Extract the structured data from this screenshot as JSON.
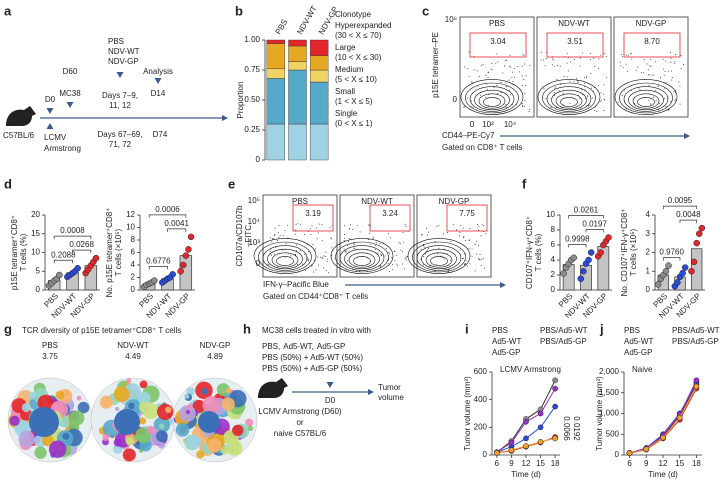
{
  "a": {
    "letter": "a",
    "d60": "D60",
    "mc38": "MC38",
    "d0": "D0",
    "groups": [
      "PBS",
      "NDV-WT",
      "NDV-GP"
    ],
    "group_colors": [
      "#8c8c8c",
      "#2a4bd7",
      "#e3262a"
    ],
    "days1": [
      "Days 7–9,",
      "11, 12"
    ],
    "analysis": "Analysis",
    "d14": "D14",
    "days2": [
      "Days 67–69,",
      "71, 72"
    ],
    "d74": "D74",
    "mouse": "C57BL/6",
    "lcmv": [
      "LCMV",
      "Armstrong"
    ]
  },
  "b": {
    "letter": "b",
    "chart_data": {
      "type": "bar",
      "stacked": true,
      "ylabel": "Proportion",
      "categories": [
        "PBS",
        "NDV-WT",
        "NDV-GP"
      ],
      "ylim": [
        0,
        1
      ],
      "yticks": [
        0,
        0.25,
        {
          "value": 0.5,
          "label": "0.50"
        },
        0.75,
        {
          "value": 1,
          "label": "1.00"
        }
      ],
      "legend_title": "Clonotype",
      "series": [
        {
          "name": "Hyperexpanded",
          "range": "(30 < X ≤ 70)",
          "color": "#e3262a",
          "values": [
            0.03,
            0.05,
            0.13
          ]
        },
        {
          "name": "Large",
          "range": "(10 < X ≤ 30)",
          "color": "#e5a823",
          "values": [
            0.21,
            0.13,
            0.12
          ]
        },
        {
          "name": "Medium",
          "range": "(5 < X ≤ 10)",
          "color": "#f0d264",
          "values": [
            0.08,
            0.07,
            0.1
          ]
        },
        {
          "name": "Small",
          "range": "(1 < X ≤ 5)",
          "color": "#56a9c9",
          "values": [
            0.38,
            0.45,
            0.35
          ]
        },
        {
          "name": "Single",
          "range": "(0 < X ≤ 1)",
          "color": "#9fd2e3",
          "values": [
            0.3,
            0.3,
            0.3
          ]
        }
      ]
    }
  },
  "c": {
    "letter": "c",
    "samples": [
      {
        "name": "PBS",
        "color": "#8c8c8c",
        "gate": "3.04"
      },
      {
        "name": "NDV-WT",
        "color": "#2a4bd7",
        "gate": "3.51"
      },
      {
        "name": "NDV-GP",
        "color": "#e3262a",
        "gate": "8.70"
      }
    ],
    "ylabel": [
      "p15E tetramer–PE"
    ],
    "yticks": [
      "10⁶",
      "0"
    ],
    "xticks": [
      "0",
      "10²",
      "10⁴"
    ],
    "xlabel": "CD44–PE-Cy7",
    "gating": "Gated on CD8⁺ T cells"
  },
  "d": {
    "letter": "d",
    "charts": [
      {
        "type": "bar",
        "ylabel": [
          "p15E tetramer⁺CD8⁺",
          "T cells (%)"
        ],
        "categories": [
          "PBS",
          "NDV-WT",
          "NDV-GP"
        ],
        "colors": [
          "#8c8c8c",
          "#2a4bd7",
          "#e3262a"
        ],
        "values": [
          2.5,
          4.6,
          6.5
        ],
        "points": [
          [
            1.2,
            1.8,
            2.5,
            3.0,
            4.0
          ],
          [
            3.5,
            4.0,
            4.5,
            5.0,
            5.8
          ],
          [
            4.5,
            5.5,
            6.5,
            7.5,
            8.5
          ]
        ],
        "ylim": [
          0,
          20
        ],
        "yticks": [
          0,
          5,
          10,
          15,
          20
        ],
        "annotations": [
          "0.2088",
          "0.0268",
          "0.0008"
        ]
      },
      {
        "type": "bar",
        "ylabel": [
          "No. p15E tetramer⁺CD8⁺",
          "T cells (×10⁵)"
        ],
        "categories": [
          "PBS",
          "NDV-WT",
          "NDV-GP"
        ],
        "colors": [
          "#8c8c8c",
          "#2a4bd7",
          "#e3262a"
        ],
        "values": [
          1.0,
          1.8,
          5.5
        ],
        "points": [
          [
            0.5,
            0.8,
            1.0,
            1.2,
            1.5
          ],
          [
            1.2,
            1.5,
            1.8,
            2.0,
            2.5
          ],
          [
            3.0,
            4.0,
            5.5,
            6.5,
            8.5
          ]
        ],
        "ylim": [
          0,
          12
        ],
        "yticks": [
          0,
          2,
          4,
          6,
          8,
          10,
          12
        ],
        "annotations": [
          "0.6776",
          "0.0041",
          "0.0006"
        ]
      }
    ]
  },
  "e": {
    "letter": "e",
    "samples": [
      {
        "name": "PBS",
        "color": "#8c8c8c",
        "gate": "3.19"
      },
      {
        "name": "NDV-WT",
        "color": "#2a4bd7",
        "gate": "3.24"
      },
      {
        "name": "NDV-GP",
        "color": "#e3262a",
        "gate": "7.75"
      }
    ],
    "ylabel": [
      "CD107a/CD107b",
      "–FITC"
    ],
    "yticks": [
      "10⁵",
      "10⁴",
      "10³",
      "0"
    ],
    "xlabel": "IFN-γ–Pacific Blue",
    "gating": "Gated on CD44⁺CD8⁺ T cells"
  },
  "f": {
    "letter": "f",
    "charts": [
      {
        "type": "bar",
        "ylabel": [
          "CD107⁺IFN-γ⁺CD8⁺",
          "T cells (%)"
        ],
        "categories": [
          "PBS",
          "NDV-WT",
          "NDV-GP"
        ],
        "colors": [
          "#8c8c8c",
          "#2a4bd7",
          "#e3262a"
        ],
        "values": [
          3.4,
          3.3,
          5.8
        ],
        "points": [
          [
            2.2,
            3.0,
            3.5,
            4.0,
            4.3
          ],
          [
            1.5,
            2.5,
            3.5,
            4.0,
            5.0
          ],
          [
            4.5,
            5.0,
            6.0,
            6.5,
            7.0
          ]
        ],
        "ylim": [
          0,
          10
        ],
        "yticks": [
          0,
          2,
          4,
          6,
          8,
          10
        ],
        "annotations": [
          "0.9998",
          "0.0197",
          "0.0261"
        ]
      },
      {
        "type": "bar",
        "ylabel": [
          "No. CD107⁺IFN-γ⁺CD8⁺",
          "T cells (×10⁵)"
        ],
        "categories": [
          "PBS",
          "NDV-WT",
          "NDV-GP"
        ],
        "colors": [
          "#8c8c8c",
          "#2a4bd7",
          "#e3262a"
        ],
        "values": [
          0.8,
          0.7,
          2.2
        ],
        "points": [
          [
            0.3,
            0.6,
            0.8,
            1.0,
            1.3
          ],
          [
            0.2,
            0.4,
            0.7,
            0.9,
            1.2
          ],
          [
            1.0,
            1.5,
            2.5,
            3.0,
            3.3
          ]
        ],
        "ylim": [
          0,
          4
        ],
        "yticks": [
          0,
          1,
          2,
          3,
          4
        ],
        "annotations": [
          "0.9760",
          "0.0048",
          "0.0095"
        ]
      }
    ]
  },
  "g": {
    "letter": "g",
    "title": "TCR diversity of p15E tetramer⁺CD8⁺ T cells",
    "groups": [
      {
        "name": "PBS",
        "color": "#8c8c8c",
        "value": 3.75
      },
      {
        "name": "NDV-WT",
        "color": "#2a4bd7",
        "value": 4.49
      },
      {
        "name": "NDV-GP",
        "color": "#e3262a",
        "value": 4.89
      }
    ]
  },
  "h": {
    "letter": "h",
    "title": "MC38 cells treated in vitro with",
    "lines": [
      [
        {
          "text": "PBS,",
          "color": "#8c8c8c"
        },
        {
          "text": "Ad5-WT,",
          "color": "#2a4bd7"
        },
        {
          "text": "Ad5-GP",
          "color": "#e3262a"
        }
      ],
      [
        {
          "text": "PBS (50%) + Ad5-WT (50%)",
          "color": "#9a2fc9"
        }
      ],
      [
        {
          "text": "PBS (50%) + Ad5-GP (50%)",
          "color": "#f0a02a"
        }
      ]
    ],
    "d0": "D0",
    "outcome": [
      "Tumor",
      "volume"
    ],
    "host": [
      "LCMV Armstrong (D60)",
      "or",
      "naive C57BL/6"
    ]
  },
  "i": {
    "letter": "i",
    "chart_data": {
      "type": "line",
      "title": "LCMV Armstrong",
      "ylabel": "Tumor volume (mm³)",
      "xlabel": "Time (d)",
      "x": [
        6,
        9,
        12,
        15,
        18
      ],
      "xlim": [
        5,
        19
      ],
      "xticks": [
        6,
        9,
        12,
        15,
        18
      ],
      "ylim": [
        0,
        600
      ],
      "yticks": [
        0,
        200,
        400,
        600
      ],
      "series": [
        {
          "name": "PBS",
          "color": "#8c8c8c",
          "values": [
            20,
            100,
            260,
            330,
            540
          ]
        },
        {
          "name": "Ad5-WT",
          "color": "#2a4bd7",
          "values": [
            20,
            60,
            120,
            200,
            350
          ]
        },
        {
          "name": "Ad5-GP",
          "color": "#e3262a",
          "values": [
            15,
            30,
            60,
            90,
            130
          ]
        },
        {
          "name": "PBS/Ad5-WT",
          "color": "#9a2fc9",
          "values": [
            20,
            90,
            240,
            300,
            480
          ]
        },
        {
          "name": "PBS/Ad5-GP",
          "color": "#f0a02a",
          "values": [
            15,
            35,
            65,
            95,
            120
          ]
        }
      ],
      "annotations": [
        "0.0066",
        "0.0192"
      ]
    }
  },
  "j": {
    "letter": "j",
    "chart_data": {
      "type": "line",
      "title": "Naive",
      "ylabel": "Tumor volume (mm³)",
      "xlabel": "Time (d)",
      "x": [
        6,
        9,
        12,
        15,
        18
      ],
      "xlim": [
        5,
        19
      ],
      "xticks": [
        6,
        9,
        12,
        15,
        18
      ],
      "ylim": [
        0,
        2000
      ],
      "yticks": [
        0,
        500,
        {
          "value": 1000,
          "label": "1,000"
        },
        {
          "value": 1500,
          "label": "1,500"
        },
        {
          "value": 2000,
          "label": "2,000"
        }
      ],
      "series": [
        {
          "name": "PBS",
          "color": "#8c8c8c",
          "values": [
            50,
            150,
            450,
            950,
            1700
          ]
        },
        {
          "name": "Ad5-WT",
          "color": "#2a4bd7",
          "values": [
            50,
            170,
            500,
            1000,
            1750
          ]
        },
        {
          "name": "Ad5-GP",
          "color": "#e3262a",
          "values": [
            40,
            130,
            400,
            850,
            1600
          ]
        },
        {
          "name": "PBS/Ad5-WT",
          "color": "#9a2fc9",
          "values": [
            50,
            160,
            480,
            980,
            1800
          ]
        },
        {
          "name": "PBS/Ad5-GP",
          "color": "#f0a02a",
          "values": [
            45,
            140,
            420,
            900,
            1650
          ]
        }
      ],
      "annotations": []
    }
  }
}
